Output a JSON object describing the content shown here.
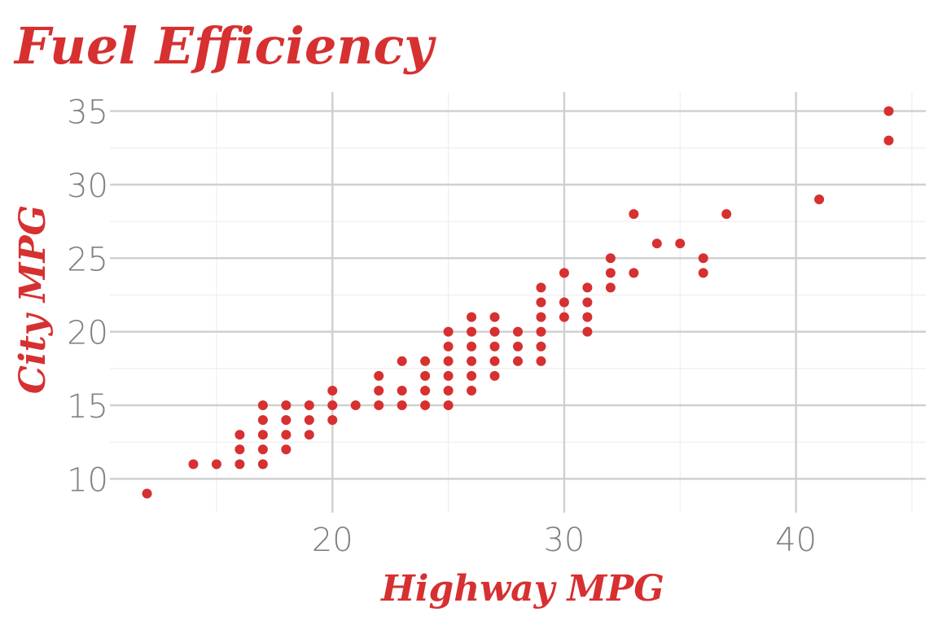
{
  "chart_data": {
    "type": "scatter",
    "title": "Fuel Efficiency",
    "xlabel": "Highway MPG",
    "ylabel": "City MPG",
    "color": "#d63031",
    "grid": true,
    "xlim": [
      10.4,
      45.6
    ],
    "xticks": [
      20,
      30,
      40
    ],
    "xminorticks": [
      15,
      25,
      35,
      45
    ],
    "ylim": [
      7.7,
      36.3
    ],
    "yticks": [
      10,
      15,
      20,
      25,
      30,
      35
    ],
    "yminorticks": [
      12.5,
      17.5,
      22.5,
      27.5,
      32.5
    ],
    "x": [
      12,
      14,
      15,
      16,
      16,
      16,
      17,
      17,
      17,
      17,
      17,
      18,
      18,
      18,
      18,
      19,
      19,
      19,
      20,
      20,
      20,
      21,
      22,
      22,
      22,
      23,
      23,
      23,
      24,
      24,
      24,
      24,
      25,
      25,
      25,
      25,
      25,
      25,
      26,
      26,
      26,
      26,
      26,
      26,
      27,
      27,
      27,
      27,
      27,
      28,
      28,
      28,
      29,
      29,
      29,
      29,
      29,
      29,
      30,
      30,
      30,
      31,
      31,
      31,
      31,
      32,
      32,
      32,
      33,
      33,
      34,
      35,
      36,
      36,
      37,
      41,
      44,
      44
    ],
    "y": [
      9,
      11,
      11,
      11,
      12,
      13,
      11,
      12,
      13,
      14,
      15,
      12,
      13,
      14,
      15,
      13,
      14,
      15,
      14,
      15,
      16,
      15,
      15,
      16,
      17,
      15,
      16,
      18,
      15,
      16,
      17,
      18,
      15,
      16,
      17,
      18,
      19,
      20,
      16,
      17,
      18,
      19,
      20,
      21,
      17,
      18,
      19,
      20,
      21,
      18,
      19,
      20,
      18,
      19,
      20,
      21,
      22,
      23,
      21,
      22,
      24,
      20,
      21,
      22,
      23,
      23,
      24,
      25,
      24,
      28,
      26,
      26,
      24,
      25,
      28,
      29,
      33,
      35
    ]
  }
}
